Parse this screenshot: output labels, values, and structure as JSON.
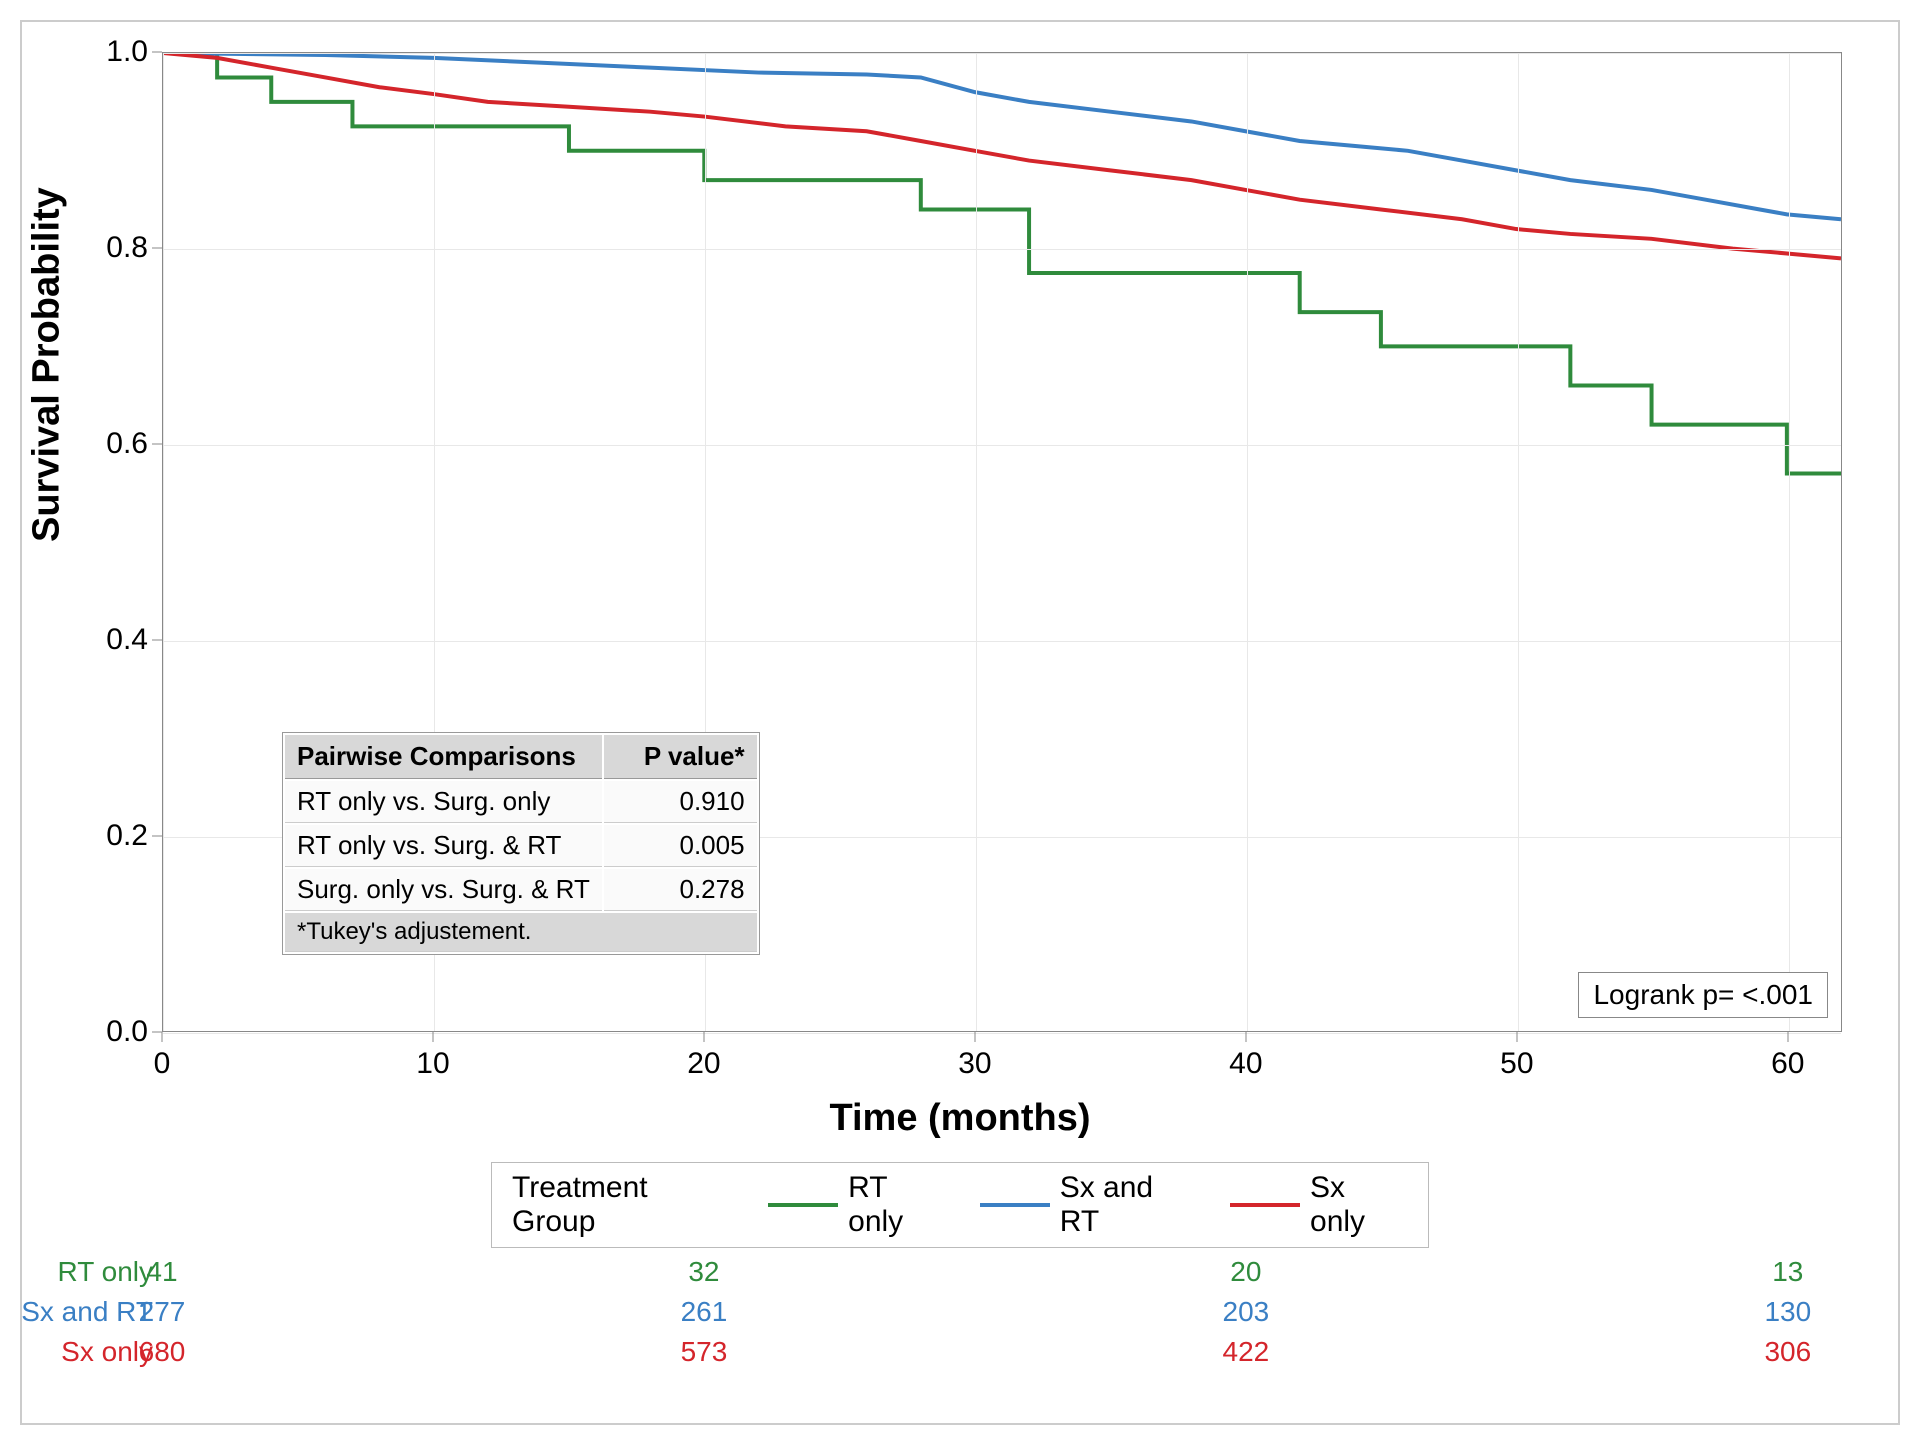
{
  "chart": {
    "type": "kaplan-meier-survival",
    "y_axis": {
      "title": "Survival Probability",
      "min": 0.0,
      "max": 1.0,
      "ticks": [
        0.0,
        0.2,
        0.4,
        0.6,
        0.8,
        1.0
      ]
    },
    "x_axis": {
      "title": "Time (months)",
      "min": 0,
      "max": 62,
      "ticks": [
        0,
        10,
        20,
        30,
        40,
        50,
        60
      ]
    },
    "grid_color": "#e8e8e8",
    "border_color": "#888888",
    "background": "#ffffff",
    "line_width": 4,
    "series": [
      {
        "name": "RT only",
        "color": "#2f8b3c",
        "points": [
          [
            0,
            1.0
          ],
          [
            2,
            1.0
          ],
          [
            2,
            0.975
          ],
          [
            4,
            0.975
          ],
          [
            4,
            0.95
          ],
          [
            7,
            0.95
          ],
          [
            7,
            0.925
          ],
          [
            15,
            0.925
          ],
          [
            15,
            0.9
          ],
          [
            20,
            0.9
          ],
          [
            20,
            0.87
          ],
          [
            28,
            0.87
          ],
          [
            28,
            0.84
          ],
          [
            32,
            0.84
          ],
          [
            32,
            0.775
          ],
          [
            42,
            0.775
          ],
          [
            42,
            0.735
          ],
          [
            45,
            0.735
          ],
          [
            45,
            0.7
          ],
          [
            52,
            0.7
          ],
          [
            52,
            0.66
          ],
          [
            55,
            0.66
          ],
          [
            55,
            0.62
          ],
          [
            60,
            0.62
          ],
          [
            60,
            0.57
          ],
          [
            62,
            0.57
          ]
        ]
      },
      {
        "name": "Sx and RT",
        "color": "#3a7fc4",
        "points": [
          [
            0,
            1.0
          ],
          [
            6,
            0.998
          ],
          [
            10,
            0.995
          ],
          [
            14,
            0.99
          ],
          [
            18,
            0.985
          ],
          [
            22,
            0.98
          ],
          [
            26,
            0.978
          ],
          [
            28,
            0.975
          ],
          [
            30,
            0.96
          ],
          [
            32,
            0.95
          ],
          [
            35,
            0.94
          ],
          [
            38,
            0.93
          ],
          [
            40,
            0.92
          ],
          [
            42,
            0.91
          ],
          [
            44,
            0.905
          ],
          [
            46,
            0.9
          ],
          [
            48,
            0.89
          ],
          [
            50,
            0.88
          ],
          [
            52,
            0.87
          ],
          [
            55,
            0.86
          ],
          [
            57,
            0.85
          ],
          [
            59,
            0.84
          ],
          [
            60,
            0.835
          ],
          [
            62,
            0.83
          ]
        ]
      },
      {
        "name": "Sx only",
        "color": "#d4252b",
        "points": [
          [
            0,
            1.0
          ],
          [
            2,
            0.995
          ],
          [
            4,
            0.985
          ],
          [
            6,
            0.975
          ],
          [
            8,
            0.965
          ],
          [
            10,
            0.958
          ],
          [
            12,
            0.95
          ],
          [
            15,
            0.945
          ],
          [
            18,
            0.94
          ],
          [
            20,
            0.935
          ],
          [
            23,
            0.925
          ],
          [
            26,
            0.92
          ],
          [
            28,
            0.91
          ],
          [
            30,
            0.9
          ],
          [
            32,
            0.89
          ],
          [
            35,
            0.88
          ],
          [
            38,
            0.87
          ],
          [
            40,
            0.86
          ],
          [
            42,
            0.85
          ],
          [
            45,
            0.84
          ],
          [
            48,
            0.83
          ],
          [
            50,
            0.82
          ],
          [
            52,
            0.815
          ],
          [
            55,
            0.81
          ],
          [
            58,
            0.8
          ],
          [
            60,
            0.795
          ],
          [
            62,
            0.79
          ]
        ]
      }
    ],
    "pairwise_table": {
      "header_comparison": "Pairwise Comparisons",
      "header_pvalue": "P value*",
      "rows": [
        {
          "label": "RT only vs. Surg. only",
          "p": "0.910"
        },
        {
          "label": "RT only vs. Surg. & RT",
          "p": "0.005"
        },
        {
          "label": "Surg. only vs. Surg. & RT",
          "p": "0.278"
        }
      ],
      "footnote": "*Tukey's adjustement."
    },
    "logrank": {
      "label": "Logrank p= <.001"
    },
    "legend": {
      "title": "Treatment Group",
      "items": [
        {
          "label": "RT only",
          "color": "#2f8b3c"
        },
        {
          "label": "Sx and RT",
          "color": "#3a7fc4"
        },
        {
          "label": "Sx only",
          "color": "#d4252b"
        }
      ]
    },
    "risk_table": {
      "time_points": [
        0,
        20,
        40,
        60
      ],
      "rows": [
        {
          "label": "RT only",
          "color": "#2f8b3c",
          "counts": [
            41,
            32,
            20,
            13
          ]
        },
        {
          "label": "Sx and RT",
          "color": "#3a7fc4",
          "counts": [
            277,
            261,
            203,
            130
          ]
        },
        {
          "label": "Sx only",
          "color": "#d4252b",
          "counts": [
            680,
            573,
            422,
            306
          ]
        }
      ]
    }
  }
}
